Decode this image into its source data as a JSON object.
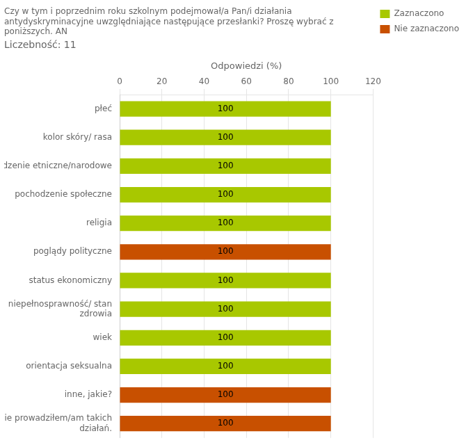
{
  "chart_data": {
    "type": "bar",
    "orientation": "horizontal",
    "title": "Czy w tym i poprzednim roku szkolnym podejmował/a Pan/i działania\nantydyskryminacyjne uwzględniające następujące przesłanki? Proszę wybrać z\nponiższych. AN",
    "subtitle": "Liczebność: 11",
    "xlabel": "Odpowiedzi (%)",
    "categories": [
      "płeć",
      "kolor skóry/ rasa",
      "pochodzenie etniczne/narodowe",
      "pochodzenie społeczne",
      "religia",
      "poglądy polityczne",
      "status ekonomiczny",
      "niepełnosprawność/ stan\nzdrowia",
      "wiek",
      "orientacja seksualna",
      "inne, jakie?",
      "nie prowadziłem/am takich\ndziałań."
    ],
    "series": [
      {
        "name": "Zaznaczono",
        "color": "#a8c800",
        "values": [
          100,
          100,
          100,
          100,
          100,
          null,
          100,
          100,
          100,
          100,
          null,
          null
        ]
      },
      {
        "name": "Nie zaznaczono",
        "color": "#c85000",
        "values": [
          null,
          null,
          null,
          null,
          null,
          100,
          null,
          null,
          null,
          null,
          100,
          100
        ]
      }
    ],
    "xlim": [
      0,
      120
    ],
    "xticks": [
      0,
      20,
      40,
      60,
      80,
      100,
      120
    ],
    "grid": true,
    "legend": "right",
    "data_labels": true
  }
}
